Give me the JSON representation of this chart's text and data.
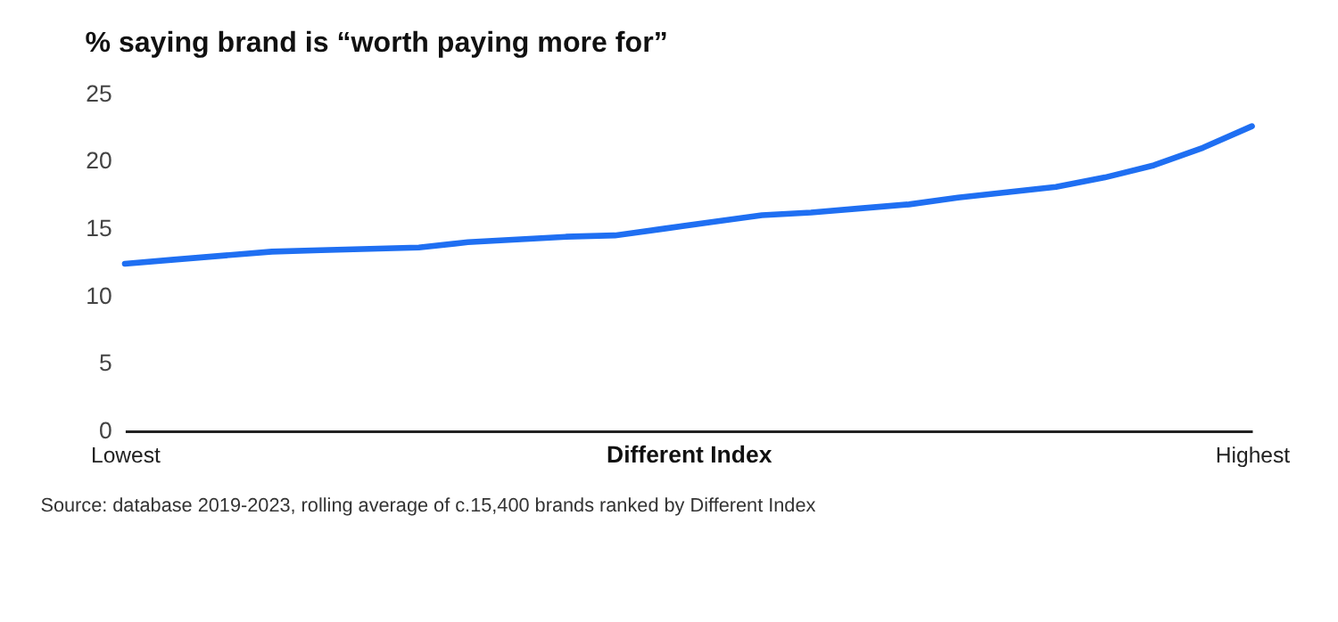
{
  "chart_data": {
    "type": "line",
    "title": "% saying brand is “worth paying more for”",
    "xlabel": "Different Index",
    "categories": [
      "Lowest",
      null,
      null,
      null,
      null,
      null,
      null,
      null,
      null,
      null,
      null,
      null,
      null,
      null,
      null,
      null,
      null,
      null,
      null,
      null,
      null,
      null,
      null,
      "Highest"
    ],
    "series": [
      {
        "color": "#1f6ff2",
        "values": [
          12.4,
          12.7,
          13.0,
          13.3,
          13.4,
          13.5,
          13.6,
          14.0,
          14.2,
          14.4,
          14.5,
          15.0,
          15.5,
          16.0,
          16.2,
          16.5,
          16.8,
          17.3,
          17.7,
          18.1,
          18.8,
          19.7,
          21.0,
          22.6
        ]
      }
    ],
    "ylim": [
      0,
      25
    ],
    "yticks": [
      0,
      5,
      10,
      15,
      20,
      25
    ],
    "grid": false,
    "marker": "none",
    "line_style": "solid",
    "annotations": [
      "Source: database 2019-2023, rolling average of c.15,400 brands ranked by Different Index"
    ]
  }
}
